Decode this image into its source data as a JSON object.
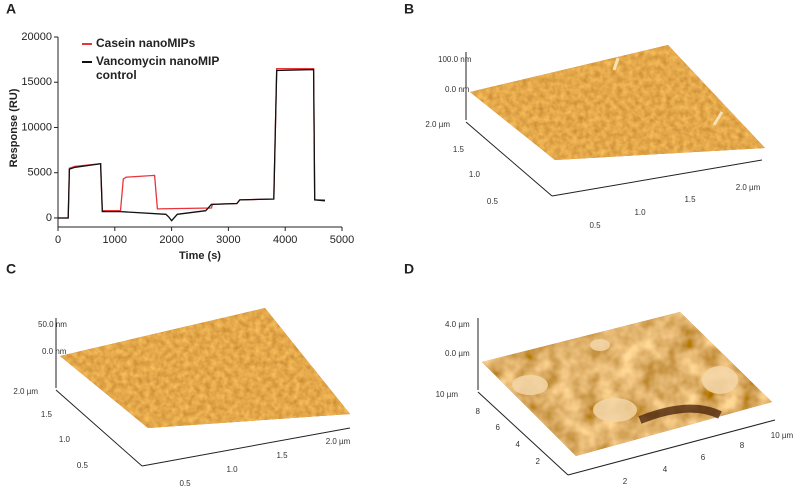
{
  "chart_data": {
    "type": "line",
    "panel": "A",
    "ylabel": "Response (RU)",
    "xlabel": "Time (s)",
    "xlim": [
      0,
      5000
    ],
    "ylim": [
      -1000,
      20000
    ],
    "xticks": [
      0,
      1000,
      2000,
      3000,
      4000,
      5000
    ],
    "yticks": [
      0,
      5000,
      10000,
      15000,
      20000
    ],
    "series": [
      {
        "name": "Casein nanoMIPs",
        "color": "#e8343a",
        "x": [
          0,
          180,
          200,
          300,
          750,
          780,
          1100,
          1150,
          1200,
          1700,
          1750,
          2700,
          2720,
          3150,
          3200,
          3800,
          3850,
          4500,
          4520,
          4700
        ],
        "values": [
          0,
          0,
          5500,
          5700,
          6000,
          800,
          800,
          4300,
          4500,
          4700,
          1000,
          1100,
          1500,
          1600,
          2000,
          2100,
          16500,
          16500,
          2000,
          2000
        ]
      },
      {
        "name": "Vancomycin nanoMIP control",
        "color": "#111111",
        "x": [
          0,
          180,
          200,
          300,
          750,
          780,
          1100,
          1900,
          1950,
          2000,
          2100,
          2600,
          2700,
          3150,
          3200,
          3800,
          3850,
          4500,
          4520,
          4700
        ],
        "values": [
          0,
          0,
          5400,
          5600,
          6000,
          700,
          700,
          400,
          100,
          -300,
          400,
          800,
          1500,
          1600,
          2000,
          2100,
          16300,
          16400,
          2000,
          1900
        ]
      }
    ]
  },
  "afm_panels": [
    {
      "panel": "B",
      "z_labels": [
        "100.0 nm",
        "0.0 nm"
      ],
      "y_labels": [
        "2.0 µm",
        "1.5",
        "1.0",
        "0.5"
      ],
      "x_labels": [
        "0.5",
        "1.0",
        "1.5",
        "2.0 µm"
      ]
    },
    {
      "panel": "C",
      "z_labels": [
        "50.0 nm",
        "0.0 nm"
      ],
      "y_labels": [
        "2.0 µm",
        "1.5",
        "1.0",
        "0.5"
      ],
      "x_labels": [
        "0.5",
        "1.0",
        "1.5",
        "2.0 µm"
      ]
    },
    {
      "panel": "D",
      "z_labels": [
        "4.0 µm",
        "0.0 µm"
      ],
      "y_labels": [
        "10 µm",
        "8",
        "6",
        "4",
        "2"
      ],
      "x_labels": [
        "2",
        "4",
        "6",
        "8",
        "10 µm"
      ]
    }
  ]
}
